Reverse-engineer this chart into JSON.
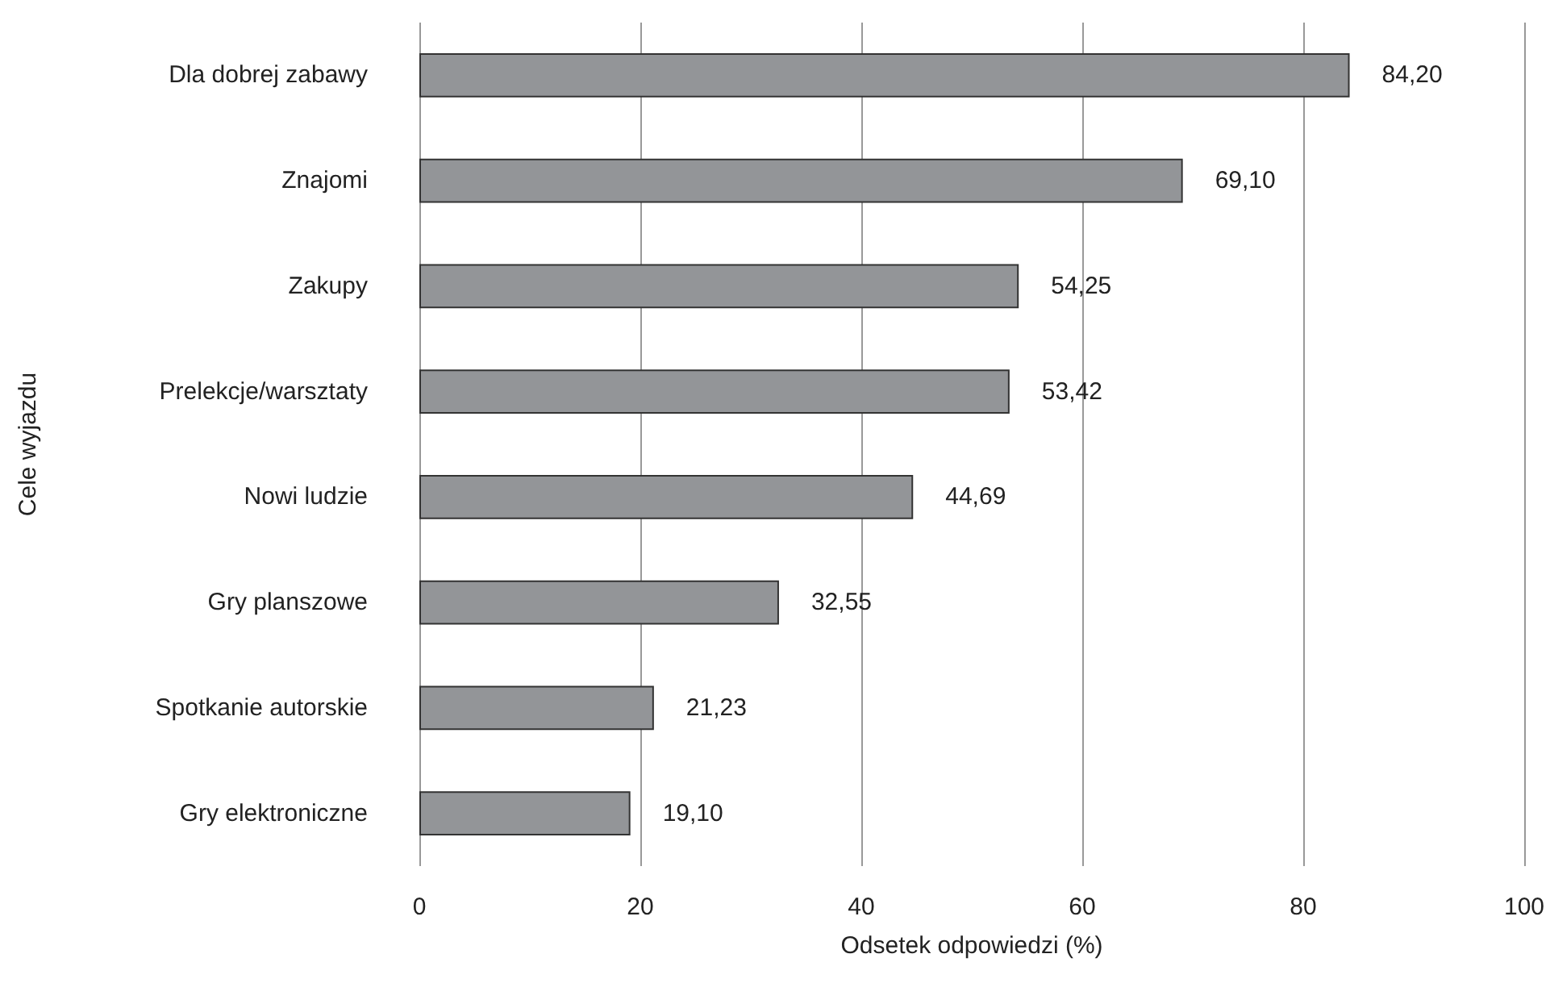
{
  "chart_data": {
    "type": "bar",
    "orientation": "horizontal",
    "categories": [
      "Dla dobrej zabawy",
      "Znajomi",
      "Zakupy",
      "Prelekcje/warsztaty",
      "Nowi ludzie",
      "Gry planszowe",
      "Spotkanie autorskie",
      "Gry elektroniczne"
    ],
    "values": [
      84.2,
      69.1,
      54.25,
      53.42,
      44.69,
      32.55,
      21.23,
      19.1
    ],
    "value_labels": [
      "84,20",
      "69,10",
      "54,25",
      "53,42",
      "44,69",
      "32,55",
      "21,23",
      "19,10"
    ],
    "color": "#939598",
    "xlim": [
      0,
      100
    ],
    "xticks": [
      0,
      20,
      40,
      60,
      80,
      100
    ],
    "xlabel": "Odsetek odpowiedzi (%)",
    "ylabel": "Cele wyjazdu",
    "grid": "x"
  }
}
